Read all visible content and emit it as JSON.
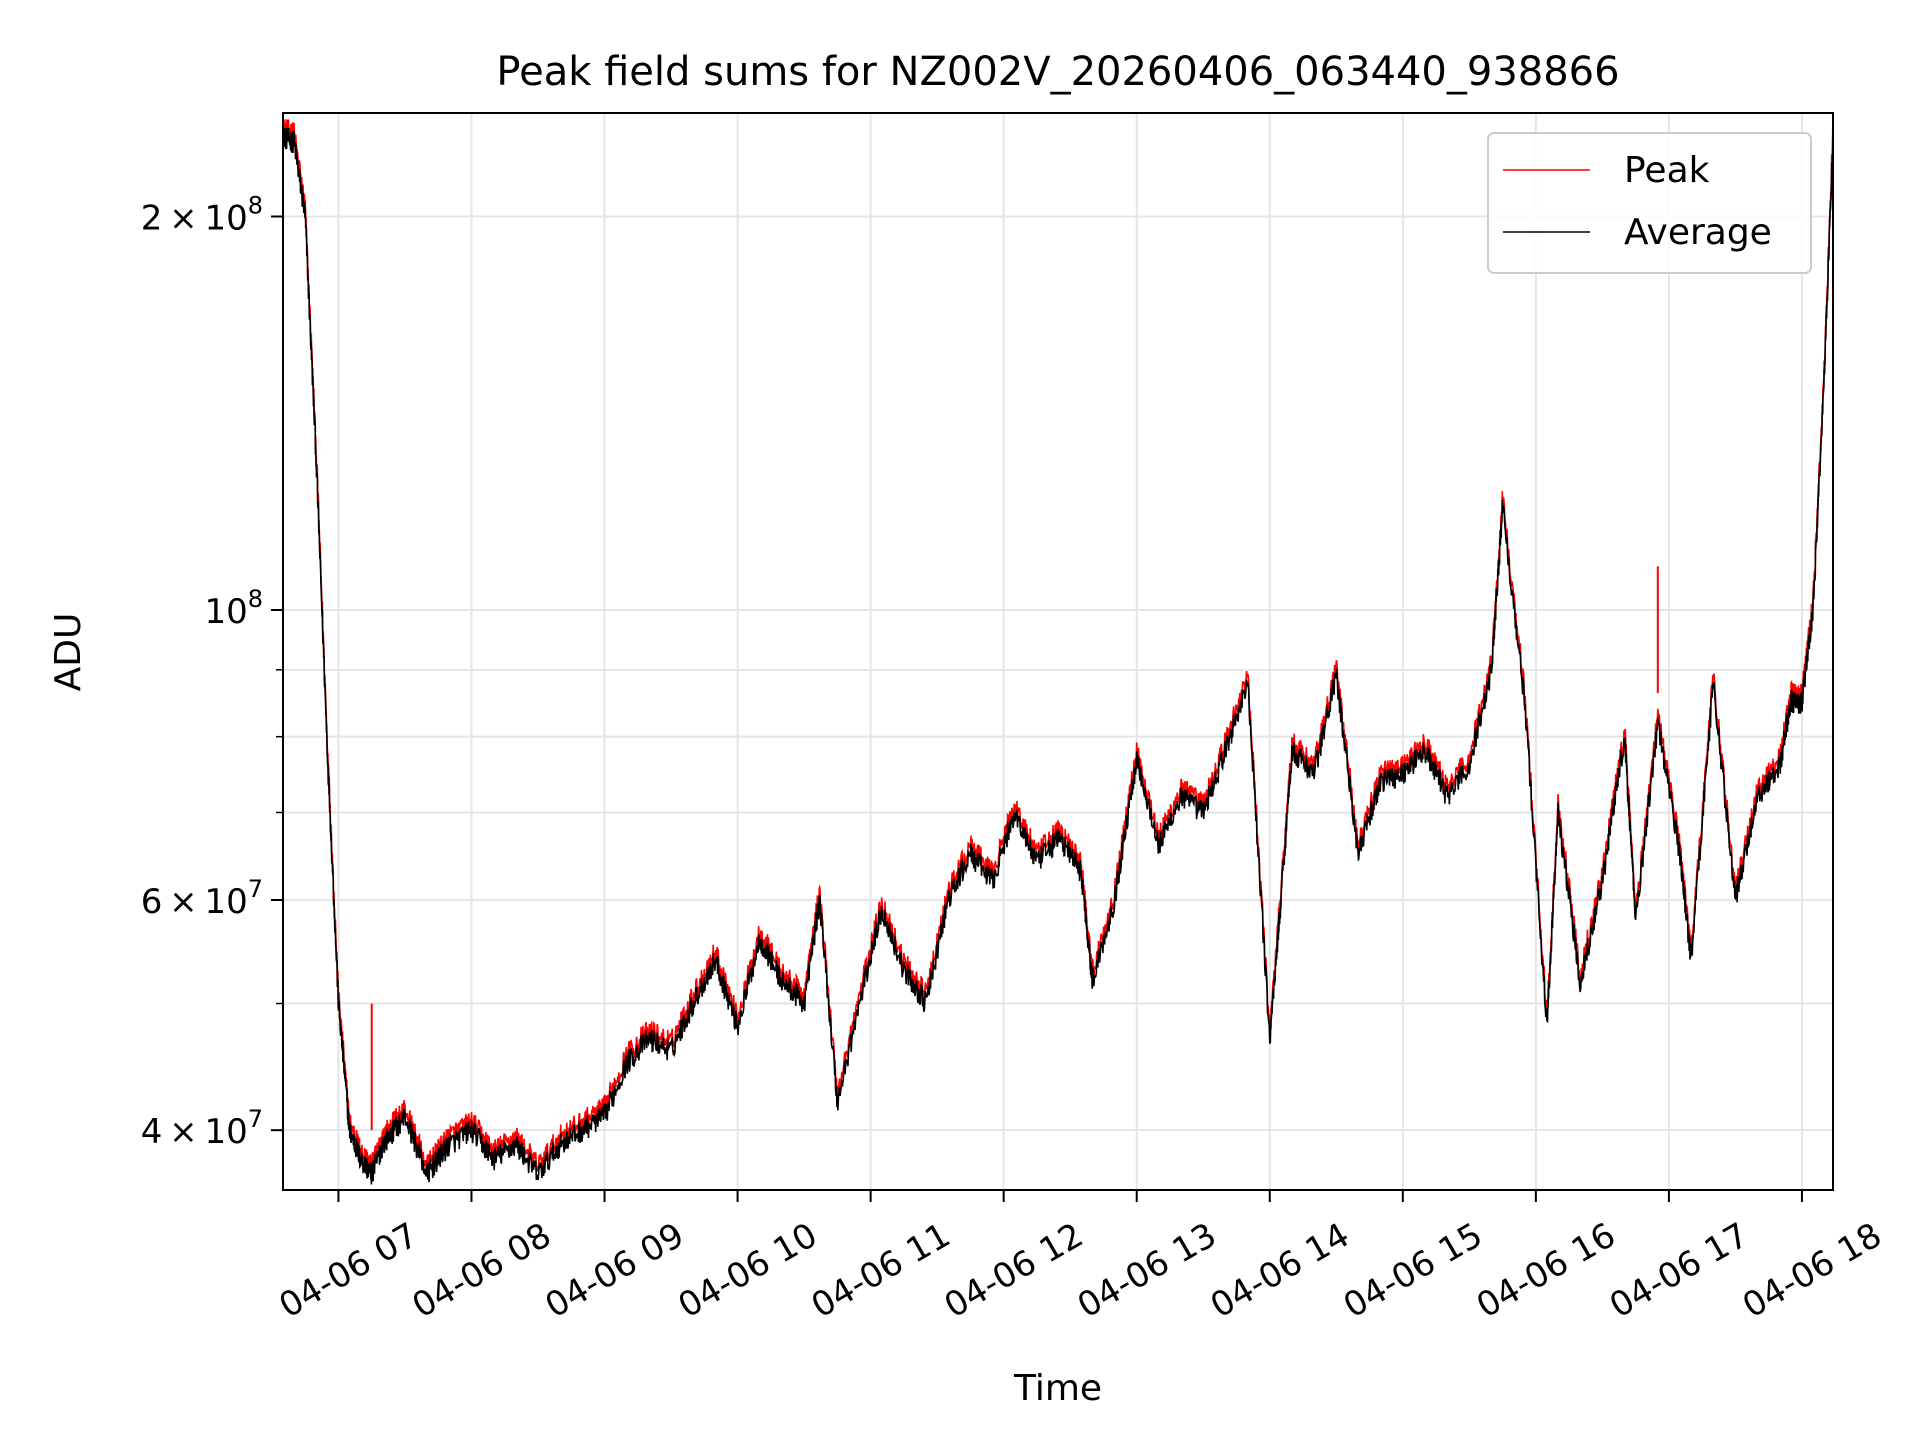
{
  "chart_data": {
    "type": "line",
    "title": "Peak field sums for NZ002V_20260406_063440_938866",
    "xlabel": "Time",
    "ylabel": "ADU",
    "y_scale": "log",
    "ylim": [
      36000000,
      240000000
    ],
    "xlim": [
      "2026-04-06 06:35",
      "2026-04-06 18:14"
    ],
    "x_ticks": [
      "2026-04-06 07:00",
      "2026-04-06 08:00",
      "2026-04-06 09:00",
      "2026-04-06 10:00",
      "2026-04-06 11:00",
      "2026-04-06 12:00",
      "2026-04-06 13:00",
      "2026-04-06 14:00",
      "2026-04-06 15:00",
      "2026-04-06 16:00",
      "2026-04-06 17:00",
      "2026-04-06 18:00"
    ],
    "x_tick_labels": [
      "04-06 07",
      "04-06 08",
      "04-06 09",
      "04-06 10",
      "04-06 11",
      "04-06 12",
      "04-06 13",
      "04-06 14",
      "04-06 15",
      "04-06 16",
      "04-06 17",
      "04-06 18"
    ],
    "y_major_ticks": [
      40000000,
      60000000,
      100000000,
      200000000
    ],
    "y_major_labels": [
      {
        "mant": "4",
        "exp": "7"
      },
      {
        "mant": "6",
        "exp": "7"
      },
      {
        "mant": "",
        "exp": "8"
      },
      {
        "mant": "2",
        "exp": "8"
      }
    ],
    "y_minor_ticks": [
      50000000,
      70000000,
      80000000,
      90000000
    ],
    "grid": true,
    "legend_position": "top-right",
    "series": [
      {
        "name": "Peak",
        "color": "#ff0000",
        "offset_factor": 1.015,
        "spikes": [
          {
            "x": "2026-04-06 07:15",
            "y": 50000000
          },
          {
            "x": "2026-04-06 16:55",
            "y": 108000000
          }
        ]
      },
      {
        "name": "Average",
        "color": "#000000",
        "offset_factor": 1.0,
        "spikes": []
      }
    ],
    "x": [
      "2026-04-06 06:35",
      "2026-04-06 06:40",
      "2026-04-06 06:45",
      "2026-04-06 06:50",
      "2026-04-06 06:55",
      "2026-04-06 07:00",
      "2026-04-06 07:05",
      "2026-04-06 07:10",
      "2026-04-06 07:15",
      "2026-04-06 07:20",
      "2026-04-06 07:30",
      "2026-04-06 07:40",
      "2026-04-06 07:45",
      "2026-04-06 07:50",
      "2026-04-06 08:00",
      "2026-04-06 08:10",
      "2026-04-06 08:20",
      "2026-04-06 08:30",
      "2026-04-06 08:40",
      "2026-04-06 08:50",
      "2026-04-06 09:00",
      "2026-04-06 09:10",
      "2026-04-06 09:20",
      "2026-04-06 09:30",
      "2026-04-06 09:40",
      "2026-04-06 09:50",
      "2026-04-06 10:00",
      "2026-04-06 10:10",
      "2026-04-06 10:20",
      "2026-04-06 10:30",
      "2026-04-06 10:37",
      "2026-04-06 10:45",
      "2026-04-06 10:55",
      "2026-04-06 11:05",
      "2026-04-06 11:15",
      "2026-04-06 11:25",
      "2026-04-06 11:35",
      "2026-04-06 11:45",
      "2026-04-06 11:55",
      "2026-04-06 12:05",
      "2026-04-06 12:15",
      "2026-04-06 12:25",
      "2026-04-06 12:35",
      "2026-04-06 12:40",
      "2026-04-06 12:50",
      "2026-04-06 13:00",
      "2026-04-06 13:10",
      "2026-04-06 13:20",
      "2026-04-06 13:30",
      "2026-04-06 13:40",
      "2026-04-06 13:50",
      "2026-04-06 14:00",
      "2026-04-06 14:05",
      "2026-04-06 14:10",
      "2026-04-06 14:20",
      "2026-04-06 14:30",
      "2026-04-06 14:40",
      "2026-04-06 14:50",
      "2026-04-06 15:00",
      "2026-04-06 15:10",
      "2026-04-06 15:20",
      "2026-04-06 15:30",
      "2026-04-06 15:40",
      "2026-04-06 15:45",
      "2026-04-06 15:55",
      "2026-04-06 16:05",
      "2026-04-06 16:10",
      "2026-04-06 16:20",
      "2026-04-06 16:30",
      "2026-04-06 16:40",
      "2026-04-06 16:45",
      "2026-04-06 16:55",
      "2026-04-06 17:05",
      "2026-04-06 17:10",
      "2026-04-06 17:20",
      "2026-04-06 17:30",
      "2026-04-06 17:40",
      "2026-04-06 17:50",
      "2026-04-06 17:55",
      "2026-04-06 18:00",
      "2026-04-06 18:05",
      "2026-04-06 18:10",
      "2026-04-06 18:14"
    ],
    "values": [
      230000000,
      228000000,
      200000000,
      130000000,
      78000000,
      50000000,
      40000000,
      38000000,
      37000000,
      39000000,
      41000000,
      37000000,
      38000000,
      39000000,
      40000000,
      38000000,
      39000000,
      37000000,
      39000000,
      40000000,
      41000000,
      45000000,
      47000000,
      46000000,
      50000000,
      54000000,
      48000000,
      56000000,
      52000000,
      50000000,
      60000000,
      42000000,
      50000000,
      59000000,
      53000000,
      50000000,
      60000000,
      65000000,
      62000000,
      70000000,
      64000000,
      67000000,
      63000000,
      52000000,
      60000000,
      77000000,
      66000000,
      72000000,
      70000000,
      78000000,
      88000000,
      47000000,
      60000000,
      78000000,
      75000000,
      89000000,
      65000000,
      74000000,
      75000000,
      78000000,
      72000000,
      76000000,
      90000000,
      120000000,
      85000000,
      48000000,
      70000000,
      52000000,
      62000000,
      80000000,
      58000000,
      82000000,
      65000000,
      54000000,
      88000000,
      60000000,
      72000000,
      76000000,
      85000000,
      85000000,
      100000000,
      150000000,
      230000000
    ]
  }
}
